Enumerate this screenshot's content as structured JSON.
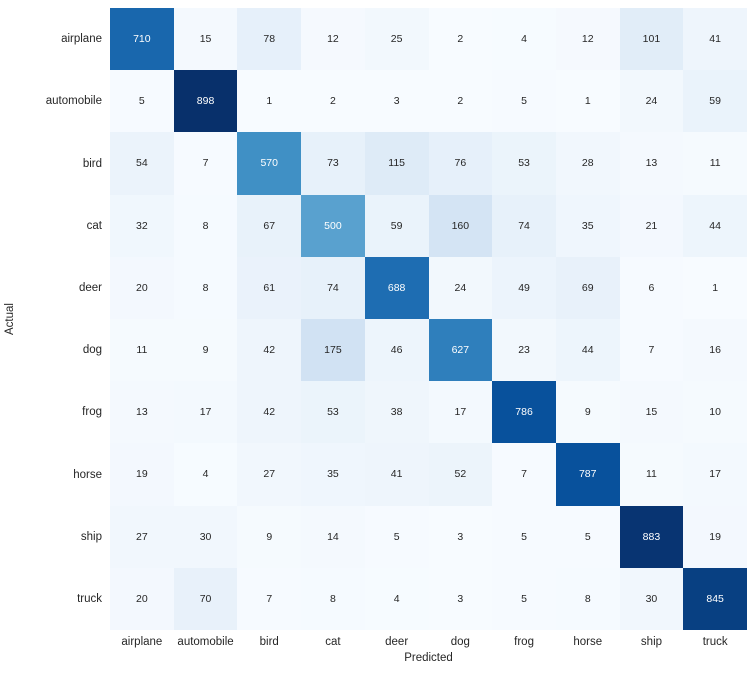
{
  "figure": {
    "background": "#ffffff",
    "text_color": "#262626"
  },
  "chart_data": {
    "type": "heatmap",
    "title": "",
    "xlabel": "Predicted",
    "ylabel": "Actual",
    "x_categories": [
      "airplane",
      "automobile",
      "bird",
      "cat",
      "deer",
      "dog",
      "frog",
      "horse",
      "ship",
      "truck"
    ],
    "y_categories": [
      "airplane",
      "automobile",
      "bird",
      "cat",
      "deer",
      "dog",
      "frog",
      "horse",
      "ship",
      "truck"
    ],
    "matrix": [
      [
        710,
        15,
        78,
        12,
        25,
        2,
        4,
        12,
        101,
        41
      ],
      [
        5,
        898,
        1,
        2,
        3,
        2,
        5,
        1,
        24,
        59
      ],
      [
        54,
        7,
        570,
        73,
        115,
        76,
        53,
        28,
        13,
        11
      ],
      [
        32,
        8,
        67,
        500,
        59,
        160,
        74,
        35,
        21,
        44
      ],
      [
        20,
        8,
        61,
        74,
        688,
        24,
        49,
        69,
        6,
        1
      ],
      [
        11,
        9,
        42,
        175,
        46,
        627,
        23,
        44,
        7,
        16
      ],
      [
        13,
        17,
        42,
        53,
        38,
        17,
        786,
        9,
        15,
        10
      ],
      [
        19,
        4,
        27,
        35,
        41,
        52,
        7,
        787,
        11,
        17
      ],
      [
        27,
        30,
        9,
        14,
        5,
        3,
        5,
        5,
        883,
        19
      ],
      [
        20,
        70,
        7,
        8,
        4,
        3,
        5,
        8,
        30,
        845
      ]
    ],
    "vmin": 1,
    "vmax": 898,
    "colormap": "Blues",
    "colormap_stops": [
      "#f7fbff",
      "#deebf7",
      "#c6dbef",
      "#9ecae1",
      "#6baed6",
      "#4292c6",
      "#2171b5",
      "#08519c",
      "#08306b"
    ],
    "annotation_dark_text": "#262626",
    "annotation_light_text": "#ffffff",
    "grid": false,
    "legend": "none"
  }
}
